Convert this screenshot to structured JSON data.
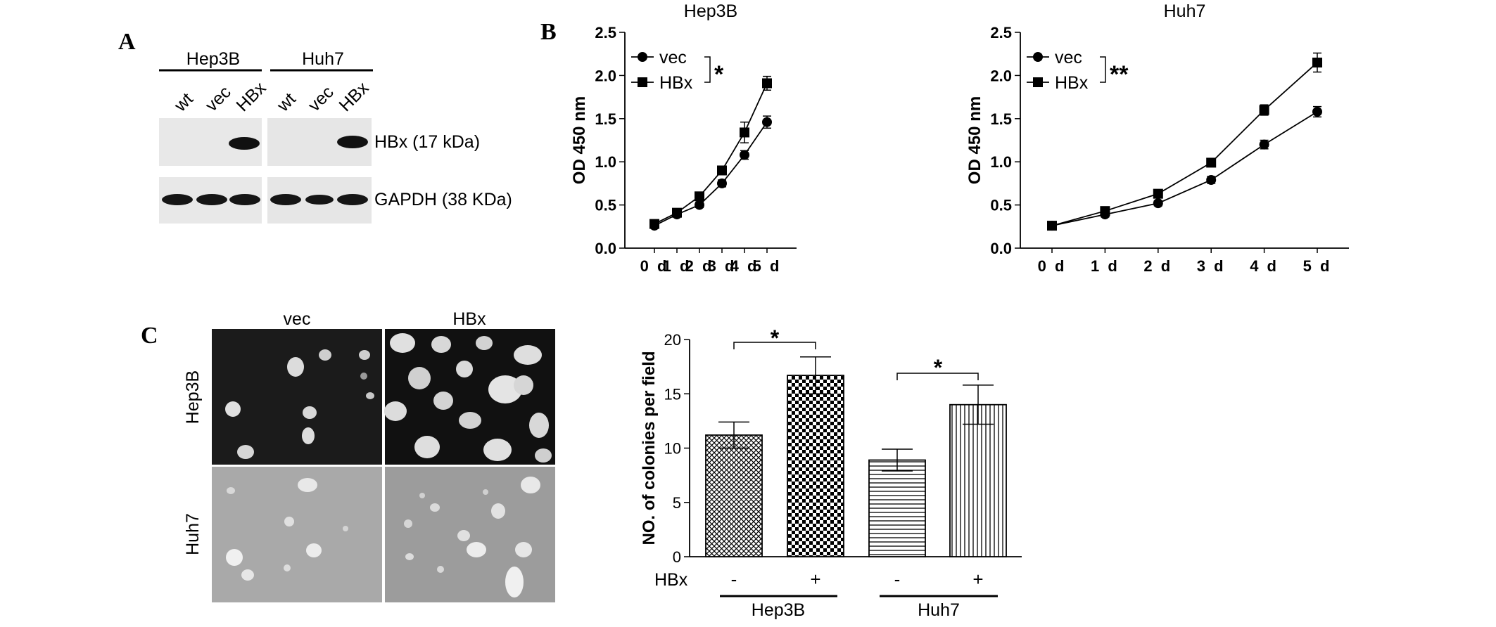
{
  "panel_a": {
    "letter": "A",
    "group_labels": [
      "Hep3B",
      "Huh7"
    ],
    "lane_labels": [
      "wt",
      "vec",
      "HBx",
      "wt",
      "vec",
      "HBx"
    ],
    "band_labels": [
      "HBx (17 kDa)",
      "GAPDH (38 KDa)"
    ]
  },
  "panel_b": {
    "letter": "B"
  },
  "panel_c": {
    "letter": "C",
    "col_labels": [
      "vec",
      "HBx"
    ],
    "row_labels": [
      "Hep3B",
      "Huh7"
    ],
    "hbx_row_label": "HBx",
    "hbx_signs": [
      "-",
      "+",
      "-",
      "+"
    ],
    "group_labels": [
      "Hep3B",
      "Huh7"
    ],
    "sig_marks": [
      "*",
      "*"
    ]
  },
  "colors": {
    "line": "#000000",
    "blot_bg": "#e6e6e6",
    "photo_dark": "#1a1a1a",
    "photo_light": "#b8b8b8"
  },
  "chart_data": [
    {
      "type": "line",
      "title": "Hep3B",
      "xlabel": "",
      "ylabel": "OD  450 nm",
      "categories": [
        "0 d",
        "1 d",
        "2 d",
        "3 d",
        "4 d",
        "5 d"
      ],
      "ylim": [
        0,
        2.5
      ],
      "yticks": [
        "0.0",
        "0.5",
        "1.0",
        "1.5",
        "2.0",
        "2.5"
      ],
      "series": [
        {
          "name": "vec",
          "marker": "circle",
          "values": [
            0.26,
            0.39,
            0.5,
            0.75,
            1.08,
            1.46
          ],
          "errors": [
            0.03,
            0.02,
            0.03,
            0.04,
            0.05,
            0.07
          ]
        },
        {
          "name": "HBx",
          "marker": "square",
          "values": [
            0.28,
            0.41,
            0.6,
            0.9,
            1.34,
            1.91
          ],
          "errors": [
            0.03,
            0.02,
            0.03,
            0.04,
            0.12,
            0.08
          ]
        }
      ],
      "significance": "*",
      "legend": "top-left"
    },
    {
      "type": "line",
      "title": "Huh7",
      "xlabel": "",
      "ylabel": "OD  450 nm",
      "categories": [
        "0 d",
        "1 d",
        "2 d",
        "3 d",
        "4 d",
        "5 d"
      ],
      "ylim": [
        0,
        2.5
      ],
      "yticks": [
        "0.0",
        "0.5",
        "1.0",
        "1.5",
        "2.0",
        "2.5"
      ],
      "series": [
        {
          "name": "vec",
          "marker": "circle",
          "values": [
            0.26,
            0.39,
            0.52,
            0.79,
            1.2,
            1.58
          ],
          "errors": [
            0.02,
            0.03,
            0.03,
            0.04,
            0.05,
            0.06
          ]
        },
        {
          "name": "HBx",
          "marker": "square",
          "values": [
            0.26,
            0.43,
            0.63,
            0.99,
            1.6,
            2.15
          ],
          "errors": [
            0.02,
            0.02,
            0.03,
            0.03,
            0.06,
            0.11
          ]
        }
      ],
      "significance": "**",
      "legend": "top-left"
    },
    {
      "type": "bar",
      "title": "",
      "xlabel": "",
      "ylabel": "NO. of colonies per field",
      "categories": [
        "Hep3B vec",
        "Hep3B HBx",
        "Huh7 vec",
        "Huh7 HBx"
      ],
      "values": [
        11.2,
        16.7,
        8.9,
        14.0
      ],
      "errors": [
        1.2,
        1.7,
        1.0,
        1.8
      ],
      "patterns": [
        "crosshatch",
        "checker",
        "horizontal",
        "vertical"
      ],
      "ylim": [
        0,
        20
      ],
      "yticks": [
        "0",
        "5",
        "10",
        "15",
        "20"
      ]
    }
  ]
}
